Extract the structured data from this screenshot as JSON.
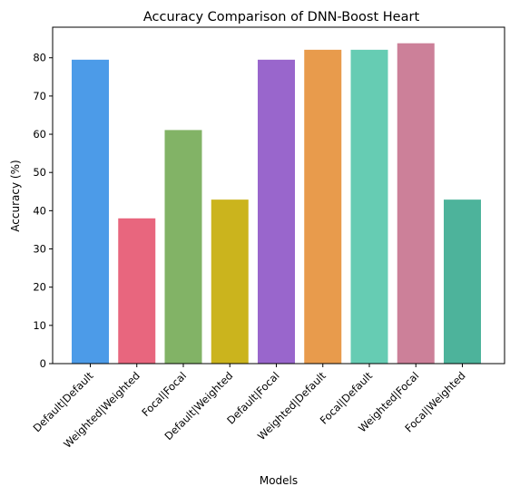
{
  "chart_data": {
    "type": "bar",
    "title": "Accuracy Comparison of DNN-Boost Heart",
    "xlabel": "Models",
    "ylabel": "Accuracy (%)",
    "ylim": [
      0,
      88
    ],
    "yticks": [
      0,
      10,
      20,
      30,
      40,
      50,
      60,
      70,
      80
    ],
    "grid": false,
    "legend": "none",
    "categories": [
      "Default|Default",
      "Weighted|Weighted",
      "Focal|Focal",
      "Default|Weighted",
      "Default|Focal",
      "Weighted|Default",
      "Focal|Default",
      "Weighted|Focal",
      "Focal|Weighted"
    ],
    "values": [
      79.5,
      38.0,
      61.1,
      42.9,
      79.5,
      82.1,
      82.1,
      83.8,
      42.9
    ],
    "colors": [
      "#4c9be8",
      "#e8667e",
      "#82b366",
      "#cbb41d",
      "#9966cc",
      "#e89b4c",
      "#66ccb3",
      "#cc8099",
      "#4db39b"
    ]
  }
}
